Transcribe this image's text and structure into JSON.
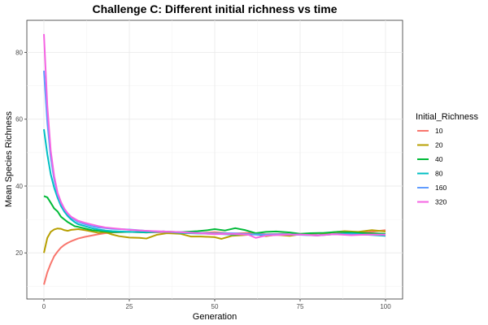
{
  "chart_data": {
    "type": "line",
    "title": "Challenge C: Different initial richness vs time",
    "xlabel": "Generation",
    "ylabel": "Mean Species Richness",
    "xlim": [
      -5,
      105
    ],
    "ylim": [
      6.2,
      89.6
    ],
    "x_ticks": [
      0,
      25,
      50,
      75,
      100
    ],
    "x_tick_labels": [
      "0",
      "25",
      "50",
      "75",
      "100"
    ],
    "y_ticks": [
      20,
      40,
      60,
      80
    ],
    "y_tick_labels": [
      "20",
      "40",
      "60",
      "80"
    ],
    "x_minor": [
      12.5,
      37.5,
      62.5,
      87.5
    ],
    "y_minor": [
      10,
      30,
      50,
      70
    ],
    "grid": true,
    "legend_title": "Initial_Richness",
    "legend_position": "right",
    "series": [
      {
        "name": "10",
        "color": "#F8766D",
        "x": [
          0,
          1,
          2,
          3,
          4,
          5,
          6,
          7,
          8,
          9,
          10,
          12,
          14,
          16,
          18,
          20,
          25,
          30,
          35,
          40,
          45,
          50,
          55,
          60,
          65,
          70,
          75,
          80,
          85,
          90,
          95,
          100
        ],
        "y": [
          10.5,
          14.2,
          16.8,
          19.0,
          20.4,
          21.6,
          22.4,
          23.0,
          23.5,
          23.9,
          24.3,
          24.8,
          25.2,
          25.6,
          25.9,
          26.1,
          26.3,
          26.1,
          26.2,
          26.0,
          25.9,
          26.2,
          25.8,
          26.0,
          25.6,
          25.7,
          25.4,
          25.8,
          26.1,
          25.9,
          26.2,
          26.8
        ]
      },
      {
        "name": "20",
        "color": "#B79F00",
        "x": [
          0,
          1,
          2,
          3,
          4,
          5,
          6,
          7,
          8,
          9,
          10,
          12,
          14,
          16,
          18,
          20,
          22,
          25,
          28,
          30,
          33,
          36,
          40,
          43,
          46,
          50,
          52,
          55,
          58,
          62,
          65,
          68,
          72,
          76,
          80,
          84,
          88,
          92,
          96,
          100
        ],
        "y": [
          20.0,
          24.5,
          26.3,
          27.0,
          27.3,
          27.2,
          26.8,
          26.6,
          26.9,
          27.0,
          27.1,
          26.8,
          26.4,
          26.0,
          26.2,
          25.5,
          25.0,
          24.6,
          24.5,
          24.3,
          25.4,
          25.9,
          25.7,
          24.9,
          24.9,
          24.7,
          24.2,
          25.1,
          25.3,
          25.6,
          25.0,
          25.4,
          25.1,
          25.7,
          25.2,
          26.1,
          26.5,
          26.3,
          26.8,
          26.4
        ]
      },
      {
        "name": "40",
        "color": "#00BA38",
        "x": [
          0,
          1,
          2,
          3,
          4,
          5,
          6,
          7,
          8,
          9,
          10,
          12,
          14,
          16,
          18,
          20,
          25,
          30,
          35,
          40,
          45,
          48,
          50,
          53,
          56,
          59,
          62,
          65,
          68,
          72,
          75,
          78,
          82,
          86,
          90,
          95,
          100
        ],
        "y": [
          37.0,
          36.6,
          35.0,
          33.3,
          32.4,
          30.8,
          30.0,
          29.2,
          28.6,
          28.0,
          27.8,
          27.3,
          26.8,
          26.6,
          26.4,
          26.2,
          26.3,
          26.1,
          26.4,
          26.2,
          26.5,
          26.8,
          27.1,
          26.7,
          27.4,
          26.8,
          25.9,
          26.3,
          26.4,
          26.1,
          25.7,
          25.9,
          26.0,
          26.3,
          26.1,
          25.9,
          25.7
        ]
      },
      {
        "name": "80",
        "color": "#00BFC4",
        "x": [
          0,
          1,
          2,
          3,
          4,
          5,
          6,
          7,
          8,
          9,
          10,
          12,
          14,
          16,
          18,
          20,
          25,
          30,
          35,
          40,
          45,
          50,
          55,
          60,
          65,
          70,
          75,
          80,
          85,
          90,
          95,
          100
        ],
        "y": [
          57.0,
          49.5,
          43.5,
          39.5,
          36.5,
          34.0,
          32.3,
          31.0,
          30.0,
          29.2,
          28.6,
          28.0,
          27.4,
          27.0,
          26.7,
          26.5,
          26.3,
          26.2,
          26.4,
          26.0,
          25.8,
          25.7,
          25.5,
          25.6,
          25.3,
          25.5,
          25.4,
          25.2,
          25.6,
          25.8,
          25.4,
          25.1
        ]
      },
      {
        "name": "160",
        "color": "#619CFF",
        "x": [
          0,
          1,
          2,
          3,
          4,
          5,
          6,
          7,
          8,
          9,
          10,
          12,
          14,
          16,
          18,
          20,
          25,
          30,
          35,
          40,
          45,
          50,
          55,
          60,
          65,
          70,
          75,
          80,
          85,
          90,
          95,
          100
        ],
        "y": [
          74.5,
          59.0,
          48.5,
          42.0,
          37.5,
          34.8,
          33.0,
          31.6,
          30.6,
          29.9,
          29.3,
          28.6,
          28.0,
          27.6,
          27.4,
          27.2,
          27.0,
          26.6,
          26.3,
          26.2,
          26.0,
          25.8,
          25.9,
          25.6,
          25.5,
          25.6,
          25.4,
          25.3,
          25.6,
          25.5,
          25.4,
          25.5
        ]
      },
      {
        "name": "320",
        "color": "#F564E3",
        "x": [
          0,
          1,
          2,
          3,
          4,
          5,
          6,
          7,
          8,
          9,
          10,
          12,
          14,
          16,
          18,
          20,
          25,
          30,
          35,
          40,
          45,
          50,
          55,
          60,
          62,
          65,
          70,
          75,
          80,
          85,
          90,
          95,
          100
        ],
        "y": [
          85.5,
          64.0,
          50.5,
          43.0,
          38.0,
          35.2,
          33.2,
          31.8,
          30.8,
          30.2,
          29.6,
          29.0,
          28.5,
          28.0,
          27.6,
          27.4,
          26.9,
          26.6,
          26.4,
          26.2,
          25.9,
          25.6,
          25.7,
          25.4,
          24.5,
          25.2,
          25.4,
          25.5,
          25.2,
          25.6,
          25.3,
          25.5,
          25.4
        ]
      }
    ]
  }
}
